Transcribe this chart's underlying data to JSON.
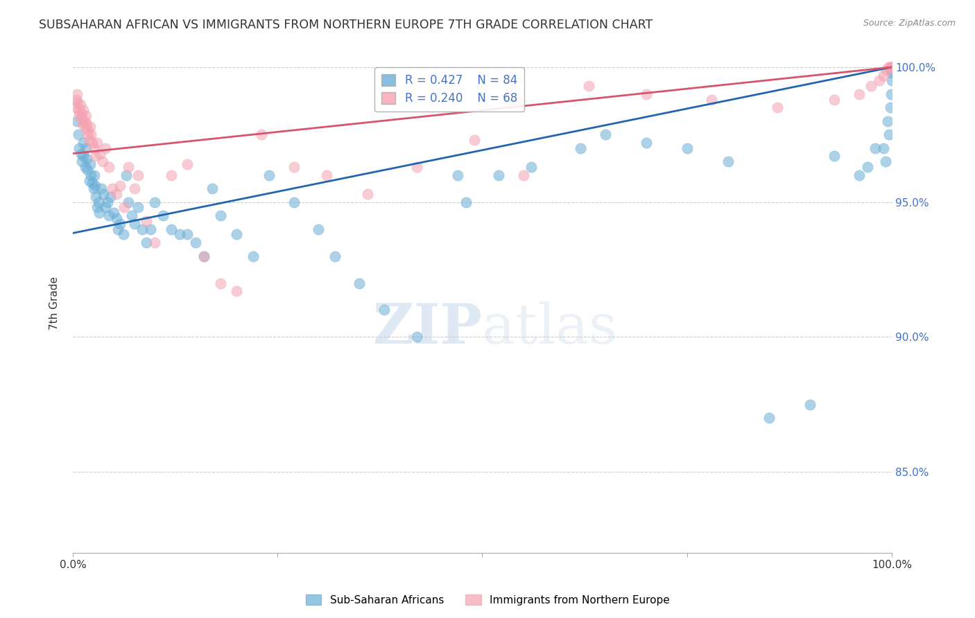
{
  "title": "SUBSAHARAN AFRICAN VS IMMIGRANTS FROM NORTHERN EUROPE 7TH GRADE CORRELATION CHART",
  "source": "Source: ZipAtlas.com",
  "ylabel": "7th Grade",
  "ylabel_right_ticks": [
    "100.0%",
    "95.0%",
    "90.0%",
    "85.0%"
  ],
  "ylabel_right_vals": [
    1.0,
    0.95,
    0.9,
    0.85
  ],
  "xlim": [
    0.0,
    1.0
  ],
  "ylim": [
    0.82,
    1.005
  ],
  "legend_blue_r": "R = 0.427",
  "legend_blue_n": "N = 84",
  "legend_pink_r": "R = 0.240",
  "legend_pink_n": "N = 68",
  "blue_color": "#6aaed6",
  "pink_color": "#f4a3b1",
  "blue_line_color": "#2166ac",
  "pink_line_color": "#d6546e",
  "watermark_zip": "ZIP",
  "watermark_atlas": "atlas",
  "legend_series_blue": "Sub-Saharan Africans",
  "legend_series_pink": "Immigrants from Northern Europe",
  "blue_points_x": [
    0.005,
    0.007,
    0.008,
    0.01,
    0.011,
    0.013,
    0.013,
    0.015,
    0.016,
    0.017,
    0.018,
    0.02,
    0.021,
    0.022,
    0.024,
    0.025,
    0.026,
    0.027,
    0.028,
    0.03,
    0.031,
    0.032,
    0.035,
    0.037,
    0.04,
    0.042,
    0.044,
    0.046,
    0.05,
    0.053,
    0.055,
    0.058,
    0.062,
    0.065,
    0.068,
    0.072,
    0.075,
    0.08,
    0.085,
    0.09,
    0.095,
    0.1,
    0.11,
    0.12,
    0.13,
    0.14,
    0.15,
    0.16,
    0.17,
    0.18,
    0.2,
    0.22,
    0.24,
    0.27,
    0.3,
    0.32,
    0.35,
    0.38,
    0.42,
    0.47,
    0.48,
    0.52,
    0.56,
    0.62,
    0.65,
    0.7,
    0.75,
    0.8,
    0.85,
    0.9,
    0.93,
    0.96,
    0.97,
    0.98,
    0.99,
    0.992,
    0.995,
    0.997,
    0.998,
    0.999,
    1.0,
    1.0,
    1.0,
    1.0
  ],
  "blue_points_y": [
    0.98,
    0.975,
    0.97,
    0.968,
    0.965,
    0.972,
    0.967,
    0.963,
    0.97,
    0.966,
    0.962,
    0.958,
    0.964,
    0.96,
    0.957,
    0.955,
    0.96,
    0.956,
    0.952,
    0.948,
    0.95,
    0.946,
    0.955,
    0.953,
    0.948,
    0.95,
    0.945,
    0.952,
    0.946,
    0.944,
    0.94,
    0.942,
    0.938,
    0.96,
    0.95,
    0.945,
    0.942,
    0.948,
    0.94,
    0.935,
    0.94,
    0.95,
    0.945,
    0.94,
    0.938,
    0.938,
    0.935,
    0.93,
    0.955,
    0.945,
    0.938,
    0.93,
    0.96,
    0.95,
    0.94,
    0.93,
    0.92,
    0.91,
    0.9,
    0.96,
    0.95,
    0.96,
    0.963,
    0.97,
    0.975,
    0.972,
    0.97,
    0.965,
    0.87,
    0.875,
    0.967,
    0.96,
    0.963,
    0.97,
    0.97,
    0.965,
    0.98,
    0.975,
    0.985,
    0.99,
    0.995,
    0.998,
    0.999,
    1.0
  ],
  "pink_points_x": [
    0.003,
    0.004,
    0.005,
    0.006,
    0.007,
    0.008,
    0.009,
    0.01,
    0.011,
    0.012,
    0.013,
    0.014,
    0.015,
    0.016,
    0.017,
    0.018,
    0.019,
    0.02,
    0.021,
    0.022,
    0.024,
    0.026,
    0.028,
    0.03,
    0.033,
    0.036,
    0.04,
    0.044,
    0.048,
    0.053,
    0.058,
    0.063,
    0.068,
    0.075,
    0.08,
    0.09,
    0.1,
    0.12,
    0.14,
    0.16,
    0.18,
    0.2,
    0.23,
    0.27,
    0.31,
    0.36,
    0.42,
    0.49,
    0.55,
    0.63,
    0.7,
    0.78,
    0.86,
    0.93,
    0.96,
    0.975,
    0.985,
    0.99,
    0.993,
    0.996,
    0.998,
    0.999,
    1.0,
    1.0,
    1.0,
    1.0,
    1.0,
    1.0
  ],
  "pink_points_y": [
    0.985,
    0.988,
    0.99,
    0.987,
    0.984,
    0.982,
    0.986,
    0.983,
    0.981,
    0.979,
    0.984,
    0.98,
    0.978,
    0.982,
    0.979,
    0.977,
    0.975,
    0.973,
    0.978,
    0.975,
    0.972,
    0.97,
    0.967,
    0.972,
    0.968,
    0.965,
    0.97,
    0.963,
    0.955,
    0.953,
    0.956,
    0.948,
    0.963,
    0.955,
    0.96,
    0.943,
    0.935,
    0.96,
    0.964,
    0.93,
    0.92,
    0.917,
    0.975,
    0.963,
    0.96,
    0.953,
    0.963,
    0.973,
    0.96,
    0.993,
    0.99,
    0.988,
    0.985,
    0.988,
    0.99,
    0.993,
    0.995,
    0.997,
    0.999,
    1.0,
    1.0,
    1.0,
    1.0,
    1.0,
    1.0,
    1.0,
    1.0,
    1.0
  ],
  "blue_line_x": [
    0.0,
    1.0
  ],
  "blue_line_y_start": 0.9385,
  "blue_line_y_end": 1.0,
  "pink_line_x": [
    0.0,
    1.0
  ],
  "pink_line_y_start": 0.968,
  "pink_line_y_end": 1.0
}
